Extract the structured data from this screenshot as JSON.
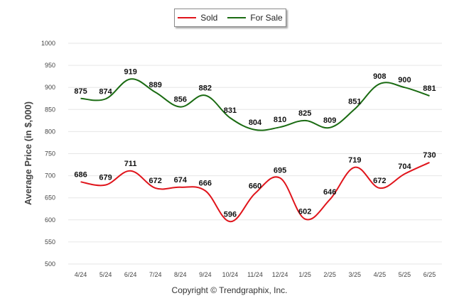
{
  "legend": {
    "sold": "Sold",
    "for_sale": "For Sale"
  },
  "colors": {
    "sold": "#e0141b",
    "for_sale": "#1a6b12",
    "grid": "#e6e6e6"
  },
  "footer": {
    "copyright": "Copyright © Trendgraphix, Inc."
  },
  "chart_data": {
    "type": "line",
    "title": "",
    "xlabel": "",
    "ylabel": "Average Price (in $,000)",
    "ylim": [
      500,
      1000
    ],
    "yticks": [
      500,
      550,
      600,
      650,
      700,
      750,
      800,
      850,
      900,
      950,
      1000
    ],
    "grid": true,
    "legend_position": "top-center",
    "categories": [
      "4/24",
      "5/24",
      "6/24",
      "7/24",
      "8/24",
      "9/24",
      "10/24",
      "11/24",
      "12/24",
      "1/25",
      "2/25",
      "3/25",
      "4/25",
      "5/25",
      "6/25"
    ],
    "series": [
      {
        "name": "Sold",
        "values": [
          686,
          679,
          711,
          672,
          674,
          666,
          596,
          660,
          695,
          602,
          646,
          719,
          672,
          704,
          730
        ]
      },
      {
        "name": "For Sale",
        "values": [
          875,
          874,
          919,
          889,
          856,
          882,
          831,
          804,
          810,
          825,
          809,
          851,
          908,
          900,
          881
        ]
      }
    ]
  }
}
